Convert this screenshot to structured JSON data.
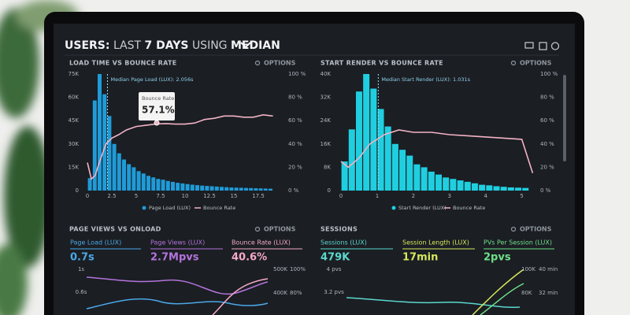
{
  "header": {
    "parts": [
      "USERS:",
      "LAST",
      "7 DAYS",
      "USING",
      "MEDIAN"
    ]
  },
  "panels": [
    {
      "title": "LOAD TIME VS BOUNCE RATE",
      "options": "OPTIONS",
      "chart": {
        "type": "histogram",
        "color": "#1f9bd8",
        "bar_name": "Page Load (LUX)",
        "bins": [
          0,
          0.5,
          1,
          1.5,
          2,
          2.5,
          3,
          3.5,
          4,
          4.5,
          5,
          5.5,
          6,
          6.5,
          7,
          7.5,
          8,
          8.5,
          9,
          9.5,
          10,
          10.5,
          11,
          11.5,
          12,
          12.5,
          13,
          13.5,
          14,
          14.5,
          15,
          15.5,
          16,
          16.5,
          17,
          17.5,
          18,
          18.5,
          19
        ],
        "values": [
          8000,
          58000,
          75000,
          62000,
          48000,
          30000,
          24000,
          20000,
          17000,
          15000,
          12500,
          11000,
          9500,
          8500,
          7500,
          7000,
          6200,
          5600,
          5000,
          4600,
          4200,
          3800,
          3500,
          3200,
          3000,
          2800,
          2600,
          2400,
          2200,
          2000,
          1900,
          1800,
          1700,
          1600,
          1500,
          1400,
          1300,
          1200
        ],
        "xlim": [
          0,
          20
        ],
        "xticks": [
          0,
          2.5,
          5,
          7.5,
          10,
          12.5,
          15,
          17.5
        ],
        "ylim": [
          0,
          75000
        ],
        "yticks": [
          0,
          {
            "value": 15000,
            "label": "15K"
          },
          {
            "value": 30000,
            "label": "30K"
          },
          {
            "value": 45000,
            "label": "45K"
          },
          {
            "value": 60000,
            "label": "60K"
          },
          {
            "value": 75000,
            "label": "75K"
          }
        ],
        "y2lim": [
          0,
          100
        ],
        "y2ticks": [
          {
            "value": 0,
            "label": "0 %"
          },
          {
            "value": 20,
            "label": "20 %"
          },
          {
            "value": 40,
            "label": "40 %"
          },
          {
            "value": 60,
            "label": "60 %"
          },
          {
            "value": 80,
            "label": "80 %"
          },
          {
            "value": 100,
            "label": "100 %"
          }
        ],
        "median": {
          "value": 2.056,
          "label": "Median Page Load (LUX): 2.056s"
        },
        "line": {
          "name": "Bounce Rate",
          "color": "#f2b3c4",
          "axis": "y2",
          "x": [
            0,
            0.4,
            0.8,
            1.3,
            1.9,
            2.5,
            3.2,
            4,
            5,
            6,
            7,
            8,
            9,
            10,
            11,
            12,
            13,
            14,
            15,
            16,
            17,
            18,
            19
          ],
          "values": [
            24,
            10,
            13,
            26,
            40,
            45,
            48,
            52,
            55,
            56,
            57.1,
            57.5,
            57,
            57,
            58,
            61,
            62,
            64,
            64,
            63,
            63,
            65,
            64
          ]
        },
        "tooltip": {
          "title": "Bounce Rate",
          "value": "57.1%"
        }
      }
    },
    {
      "title": "START RENDER VS BOUNCE RATE",
      "options": "OPTIONS",
      "chart": {
        "type": "histogram",
        "color": "#1fcfe0",
        "bar_name": "Start Render (LUX)",
        "bins": [
          0,
          0.2,
          0.4,
          0.6,
          0.8,
          1,
          1.2,
          1.4,
          1.6,
          1.8,
          2,
          2.2,
          2.4,
          2.6,
          2.8,
          3,
          3.2,
          3.4,
          3.6,
          3.8,
          4,
          4.2,
          4.4,
          4.6,
          4.8,
          5,
          5.2
        ],
        "values": [
          10000,
          21000,
          34000,
          40000,
          35000,
          28000,
          22000,
          16000,
          14000,
          12000,
          9000,
          8000,
          6500,
          5500,
          4500,
          4000,
          3500,
          3000,
          2500,
          2000,
          1800,
          1500,
          1300,
          1100,
          1000,
          900
        ],
        "xlim": [
          0,
          5.4
        ],
        "xticks": [
          0,
          1,
          2,
          3,
          4,
          5
        ],
        "ylim": [
          0,
          40000
        ],
        "yticks": [
          0,
          {
            "value": 8000,
            "label": "8K"
          },
          {
            "value": 16000,
            "label": "16K"
          },
          {
            "value": 24000,
            "label": "24K"
          },
          {
            "value": 32000,
            "label": "32K"
          },
          {
            "value": 40000,
            "label": "40K"
          }
        ],
        "y2lim": [
          0,
          100
        ],
        "y2ticks": [
          {
            "value": 0,
            "label": "0 %"
          },
          {
            "value": 20,
            "label": "20 %"
          },
          {
            "value": 40,
            "label": "40 %"
          },
          {
            "value": 60,
            "label": "60 %"
          },
          {
            "value": 80,
            "label": "80 %"
          },
          {
            "value": 100,
            "label": "100 %"
          }
        ],
        "median": {
          "value": 1.031,
          "label": "Median Start Render (LUX): 1.031s"
        },
        "line": {
          "name": "Bounce Rate",
          "color": "#f2b3c4",
          "axis": "y2",
          "x": [
            0,
            0.2,
            0.5,
            0.8,
            1.2,
            1.6,
            2,
            2.5,
            3,
            3.5,
            4,
            4.5,
            5,
            5.3
          ],
          "values": [
            25,
            20,
            28,
            40,
            48,
            52,
            50,
            50,
            48,
            47,
            46,
            45,
            44,
            15
          ]
        }
      }
    },
    {
      "title": "PAGE VIEWS VS ONLOAD",
      "options": "OPTIONS",
      "metrics": [
        {
          "label": "Page Load (LUX)",
          "value": "0.7s",
          "color": "#4aa8e8"
        },
        {
          "label": "Page Views (LUX)",
          "value": "2.7Mpvs",
          "color": "#b474dc"
        },
        {
          "label": "Bounce Rate (LUX)",
          "value": "40.6%",
          "color": "#f4a9c8"
        }
      ],
      "left_ticks": [
        "1s",
        "0.6s"
      ],
      "right_ticks": [
        [
          "500K",
          "400K"
        ],
        [
          "100%",
          "80%"
        ]
      ]
    },
    {
      "title": "SESSIONS",
      "options": "OPTIONS",
      "metrics": [
        {
          "label": "Sessions (LUX)",
          "value": "479K",
          "color": "#5ad8d0"
        },
        {
          "label": "Session Length (LUX)",
          "value": "17min",
          "color": "#d6e85c"
        },
        {
          "label": "PVs Per Session (LUX)",
          "value": "2pvs",
          "color": "#6ee08a"
        }
      ],
      "left_ticks": [
        "4 pvs",
        "3.2 pvs"
      ],
      "right_ticks": [
        [
          "100K",
          "80K"
        ],
        [
          "40 min",
          "32 min"
        ]
      ]
    }
  ]
}
